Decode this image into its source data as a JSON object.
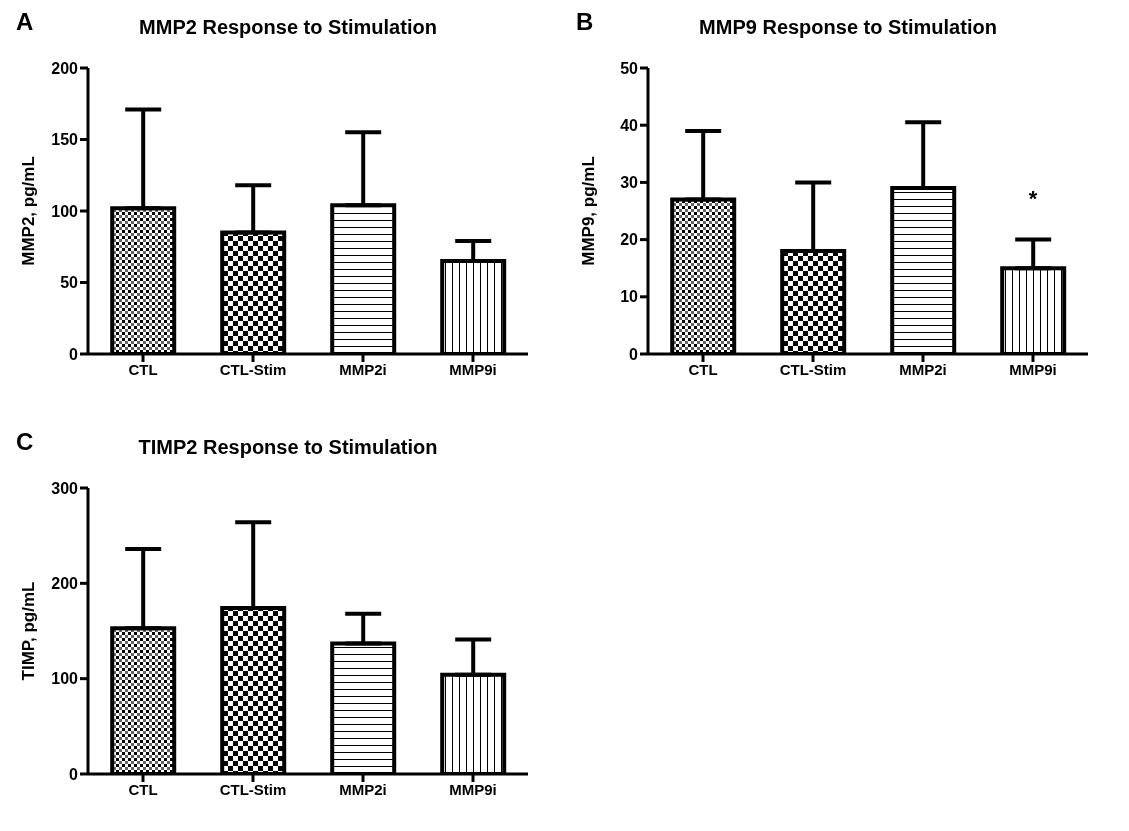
{
  "chart_data": [
    {
      "type": "bar",
      "title": "MMP2 Response to Stimulation",
      "ylabel": "MMP2, pg/mL",
      "annotations": [
        "A"
      ],
      "categories": [
        "CTL",
        "CTL-Stim",
        "MMP2i",
        "MMP9i"
      ],
      "values": [
        102,
        85,
        104,
        65
      ],
      "errors": [
        [
          102,
          171
        ],
        [
          85,
          118
        ],
        [
          104,
          155
        ],
        [
          65,
          79
        ]
      ],
      "color": "#000000",
      "ylim": [
        0,
        200
      ],
      "yticks": [
        0,
        50,
        100,
        150,
        200
      ],
      "grid": false,
      "legend": false
    },
    {
      "type": "bar",
      "title": "MMP9 Response to Stimulation",
      "ylabel": "MMP9, pg/mL",
      "annotations": [
        "B",
        {
          "text": "*",
          "x": "MMP9i",
          "y": 20
        }
      ],
      "categories": [
        "CTL",
        "CTL-Stim",
        "MMP2i",
        "MMP9i"
      ],
      "values": [
        27,
        18,
        29,
        15
      ],
      "errors": [
        [
          27,
          39
        ],
        [
          18,
          30
        ],
        [
          29,
          40.5
        ],
        [
          15,
          20
        ]
      ],
      "color": "#000000",
      "ylim": [
        0,
        50
      ],
      "yticks": [
        0,
        10,
        20,
        30,
        40,
        50
      ],
      "grid": false,
      "legend": false
    },
    {
      "type": "bar",
      "title": "TIMP2 Response to Stimulation",
      "ylabel": "TIMP, pg/mL",
      "annotations": [
        "C"
      ],
      "categories": [
        "CTL",
        "CTL-Stim",
        "MMP2i",
        "MMP9i"
      ],
      "values": [
        153,
        174,
        137,
        104
      ],
      "errors": [
        [
          153,
          236
        ],
        [
          174,
          264
        ],
        [
          137,
          168
        ],
        [
          104,
          141
        ]
      ],
      "color": "#000000",
      "ylim": [
        0,
        300
      ],
      "yticks": [
        0,
        100,
        200,
        300
      ],
      "grid": false,
      "legend": false
    }
  ]
}
